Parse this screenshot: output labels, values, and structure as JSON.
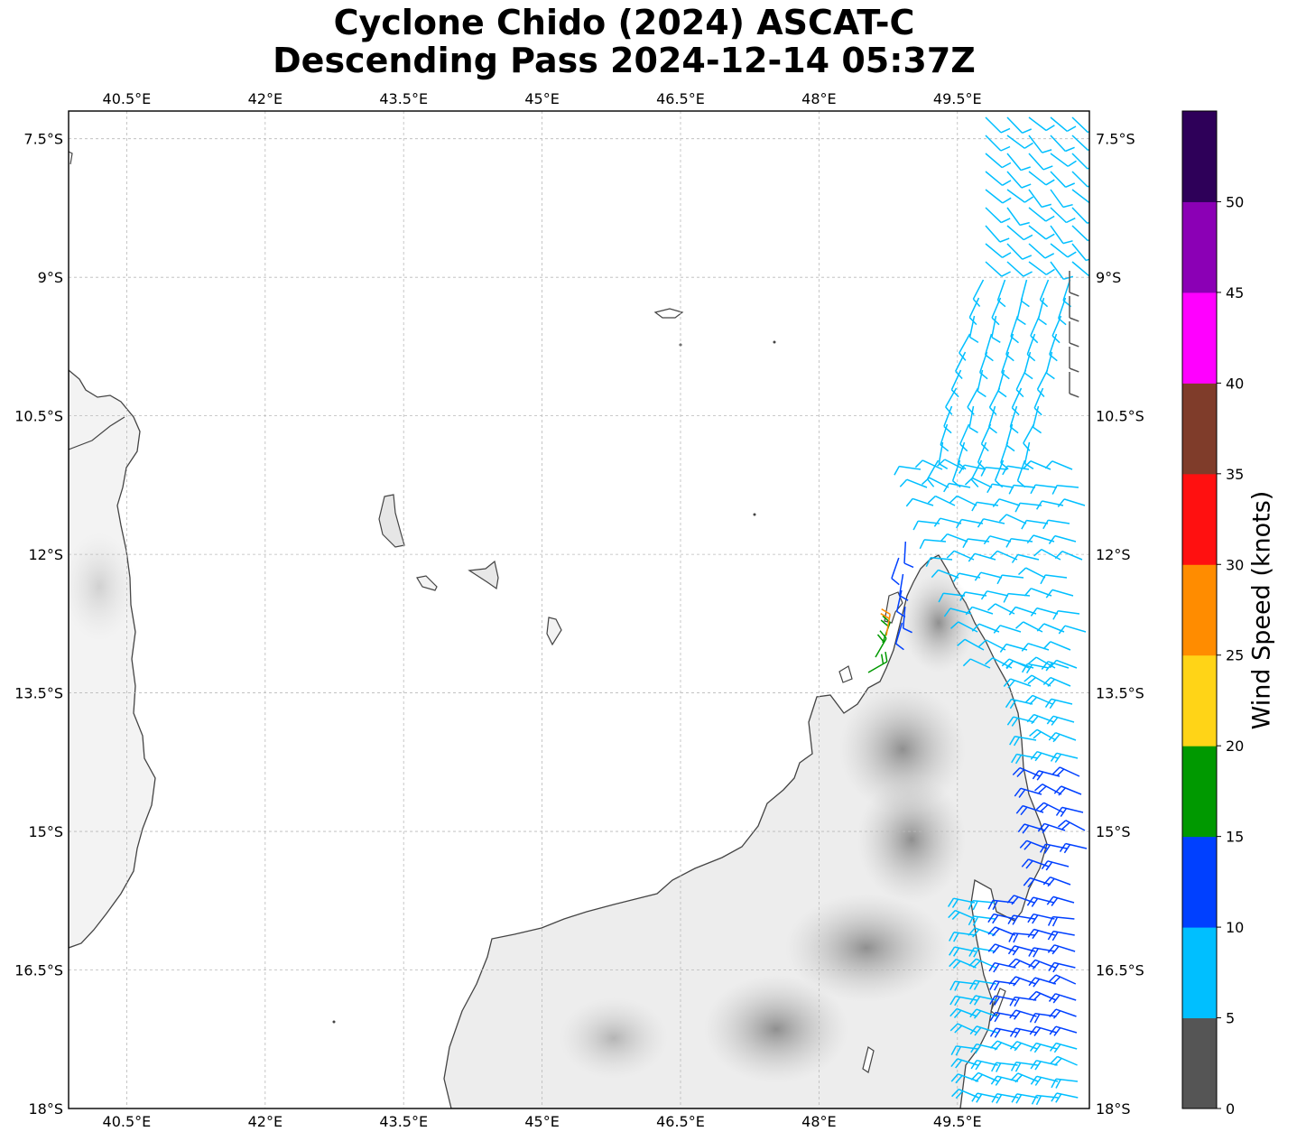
{
  "title": {
    "line1": "Cyclone Chido (2024) ASCAT-C",
    "line2": "Descending Pass 2024-12-14 05:37Z"
  },
  "axes": {
    "lon_ticks": [
      "40.5°E",
      "42°E",
      "43.5°E",
      "45°E",
      "46.5°E",
      "48°E",
      "49.5°E"
    ],
    "lon_values": [
      40.5,
      42,
      43.5,
      45,
      46.5,
      48,
      49.5
    ],
    "lat_ticks": [
      "7.5°S",
      "9°S",
      "10.5°S",
      "12°S",
      "13.5°S",
      "15°S",
      "16.5°S",
      "18°S"
    ],
    "lat_values": [
      -7.5,
      -9,
      -10.5,
      -12,
      -13.5,
      -15,
      -16.5,
      -18
    ],
    "lon_range": [
      39.87,
      50.93
    ],
    "lat_range": [
      -18.0,
      -7.2
    ]
  },
  "colorbar": {
    "label": "Wind Speed (knots)",
    "tick_labels": [
      "0",
      "5",
      "10",
      "15",
      "20",
      "25",
      "30",
      "35",
      "40",
      "45",
      "50"
    ],
    "colors": [
      "#555555",
      "#00bfff",
      "#0040ff",
      "#009900",
      "#ffd417",
      "#ff8c00",
      "#ff1010",
      "#7f3c2a",
      "#ff00ff",
      "#8b00b5",
      "#2e0059"
    ],
    "max": 55
  },
  "wind_barb_colors": {
    "calm": "#555555",
    "5-10": "#00bfff",
    "10-15": "#0040ff",
    "15-20": "#009900",
    "25-30": "#ff8c00"
  }
}
